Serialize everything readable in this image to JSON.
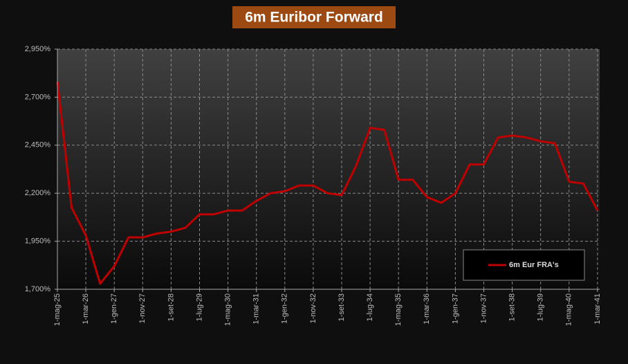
{
  "chart_data": {
    "type": "line",
    "title": "6m Euribor Forward",
    "categories": [
      "1-mag-25",
      null,
      "1-mar-26",
      null,
      "1-gen-27",
      null,
      "1-nov-27",
      null,
      "1-set-28",
      null,
      "1-lug-29",
      null,
      "1-mag-30",
      null,
      "1-mar-31",
      null,
      "1-gen-32",
      null,
      "1-nov-32",
      null,
      "1-set-33",
      null,
      "1-lug-34",
      null,
      "1-mag-35",
      null,
      "1-mar-36",
      null,
      "1-gen-37",
      null,
      "1-nov-37",
      null,
      "1-set-38",
      null,
      "1-lug-39",
      null,
      "1-mag-40",
      null,
      "1-mar-41"
    ],
    "series": [
      {
        "name": "6m Eur FRA's",
        "color": "#c00000",
        "values": [
          2.781,
          2.125,
          1.98,
          1.729,
          1.82,
          1.97,
          1.97,
          1.99,
          2.0,
          2.02,
          2.09,
          2.09,
          2.11,
          2.11,
          2.16,
          2.2,
          2.21,
          2.24,
          2.24,
          2.2,
          2.19,
          2.34,
          2.54,
          2.53,
          2.27,
          2.27,
          2.18,
          2.15,
          2.2,
          2.35,
          2.35,
          2.49,
          2.5,
          2.49,
          2.47,
          2.46,
          2.26,
          2.25,
          2.11
        ]
      }
    ],
    "ylim": [
      1.7,
      2.95
    ],
    "yticks": [
      {
        "value": 1.7,
        "label": "1,700%"
      },
      {
        "value": 1.95,
        "label": "1,950%"
      },
      {
        "value": 2.2,
        "label": "2,200%"
      },
      {
        "value": 2.45,
        "label": "2,450%"
      },
      {
        "value": 2.7,
        "label": "2,700%"
      },
      {
        "value": 2.95,
        "label": "2,950%"
      }
    ],
    "grid": true,
    "legend": "lower right"
  }
}
